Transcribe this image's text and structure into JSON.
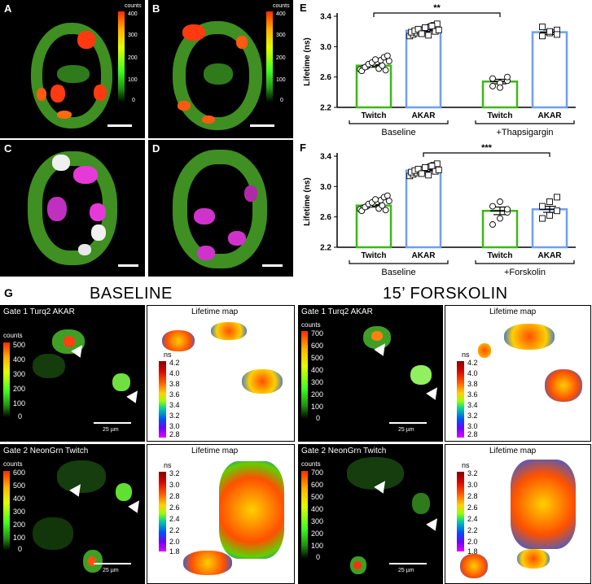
{
  "panels": {
    "A": {
      "label": "A",
      "colorbar_title": "counts",
      "ticks": [
        "400",
        "300",
        "200",
        "100",
        "0"
      ]
    },
    "B": {
      "label": "B",
      "colorbar_title": "counts",
      "ticks": [
        "400",
        "300",
        "200",
        "100",
        "0"
      ]
    },
    "C": {
      "label": "C"
    },
    "D": {
      "label": "D"
    },
    "G": {
      "label": "G"
    }
  },
  "chart_data": [
    {
      "panel": "E",
      "type": "bar",
      "ylabel": "Lifetime (ns)",
      "ylim": [
        2.2,
        3.4
      ],
      "yticks": [
        "3.4",
        "3.0",
        "2.6",
        "2.2"
      ],
      "categories": [
        "Twitch",
        "AKAR",
        "Twitch",
        "AKAR"
      ],
      "values": [
        2.75,
        3.21,
        2.54,
        3.19
      ],
      "errors": [
        0.02,
        0.02,
        0.03,
        0.03
      ],
      "colors": [
        "#3cb818",
        "#6f9ff0",
        "#3cb818",
        "#6f9ff0"
      ],
      "groups": [
        "Baseline",
        "+Thapsigargin"
      ],
      "significance": "**",
      "points": [
        [
          2.7,
          2.72,
          2.74,
          2.76,
          2.78,
          2.8,
          2.82,
          2.86,
          2.88,
          2.68,
          2.73,
          2.77,
          2.79,
          2.83,
          2.71,
          2.75,
          2.69,
          2.81
        ],
        [
          3.14,
          3.16,
          3.18,
          3.2,
          3.22,
          3.24,
          3.26,
          3.28,
          3.3,
          3.19,
          3.21,
          3.23,
          3.17,
          3.25,
          3.15,
          3.27,
          3.2,
          3.22
        ],
        [
          2.48,
          2.52,
          2.55,
          2.58,
          2.46,
          2.6
        ],
        [
          3.14,
          3.18,
          3.22,
          3.26,
          3.2,
          3.16
        ]
      ]
    },
    {
      "panel": "F",
      "type": "bar",
      "ylabel": "Lifetime (ns)",
      "ylim": [
        2.2,
        3.4
      ],
      "yticks": [
        "3.4",
        "3.0",
        "2.6",
        "2.2"
      ],
      "categories": [
        "Twitch",
        "AKAR",
        "Twitch",
        "AKAR"
      ],
      "values": [
        2.75,
        3.21,
        2.68,
        2.7
      ],
      "errors": [
        0.02,
        0.02,
        0.05,
        0.04
      ],
      "colors": [
        "#3cb818",
        "#6f9ff0",
        "#3cb818",
        "#6f9ff0"
      ],
      "groups": [
        "Baseline",
        "+Forskolin"
      ],
      "significance": "***",
      "points": [
        [
          2.7,
          2.72,
          2.74,
          2.76,
          2.78,
          2.8,
          2.82,
          2.86,
          2.88,
          2.68,
          2.73,
          2.77,
          2.79,
          2.83,
          2.71,
          2.75,
          2.69,
          2.81
        ],
        [
          3.14,
          3.16,
          3.18,
          3.2,
          3.22,
          3.24,
          3.26,
          3.28,
          3.3,
          3.19,
          3.21,
          3.23,
          3.17,
          3.25,
          3.15,
          3.27,
          3.2,
          3.22
        ],
        [
          2.5,
          2.58,
          2.66,
          2.74,
          2.8,
          2.7
        ],
        [
          2.58,
          2.62,
          2.68,
          2.74,
          2.8,
          2.86
        ]
      ]
    }
  ],
  "grid": {
    "baseline_title": "BASELINE",
    "forskolin_title": "15’ FORSKOLIN",
    "lifetime_map_title": "Lifetime map",
    "ns_label": "ns",
    "counts_label": "counts",
    "scale_label": "25 µm",
    "rows": [
      {
        "gate": "Gate 1  Turq2 AKAR",
        "left_ticks": [
          "500",
          "400",
          "300",
          "200",
          "100",
          "0"
        ],
        "right_ticks": [
          "700",
          "600",
          "500",
          "400",
          "300",
          "200",
          "100",
          "0"
        ],
        "lifetime_ticks": [
          "4.2",
          "4.0",
          "3.8",
          "3.6",
          "3.4",
          "3.2",
          "3.0",
          "2.8"
        ]
      },
      {
        "gate": "Gate 2  NeonGrn Twitch",
        "left_ticks": [
          "600",
          "500",
          "400",
          "300",
          "200",
          "100",
          "0"
        ],
        "right_ticks": [
          "700",
          "600",
          "500",
          "400",
          "300",
          "200",
          "100",
          "0"
        ],
        "lifetime_ticks": [
          "3.2",
          "3.0",
          "2.8",
          "2.6",
          "2.4",
          "2.2",
          "2.0",
          "1.8"
        ]
      }
    ]
  },
  "colors": {
    "twitch": "#3cb818",
    "akar": "#6f9ff0"
  }
}
